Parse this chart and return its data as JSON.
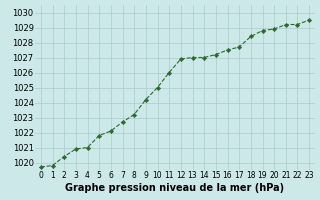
{
  "x": [
    0,
    1,
    2,
    3,
    4,
    5,
    6,
    7,
    8,
    9,
    10,
    11,
    12,
    13,
    14,
    15,
    16,
    17,
    18,
    19,
    20,
    21,
    22,
    23
  ],
  "y": [
    1019.7,
    1019.8,
    1020.4,
    1020.9,
    1021.0,
    1021.8,
    1022.1,
    1022.7,
    1023.2,
    1024.2,
    1025.0,
    1026.0,
    1026.9,
    1027.0,
    1027.0,
    1027.2,
    1027.5,
    1027.7,
    1028.4,
    1028.8,
    1028.9,
    1029.2,
    1029.2,
    1029.5
  ],
  "ylim": [
    1019.5,
    1030.5
  ],
  "yticks": [
    1020,
    1021,
    1022,
    1023,
    1024,
    1025,
    1026,
    1027,
    1028,
    1029,
    1030
  ],
  "xticks": [
    0,
    1,
    2,
    3,
    4,
    5,
    6,
    7,
    8,
    9,
    10,
    11,
    12,
    13,
    14,
    15,
    16,
    17,
    18,
    19,
    20,
    21,
    22,
    23
  ],
  "line_color": "#2d6a2d",
  "marker_color": "#2d6a2d",
  "bg_color": "#cce8e8",
  "grid_color": "#aacccc",
  "xlabel": "Graphe pression niveau de la mer (hPa)",
  "xlabel_fontsize": 7,
  "ylabel_fontsize": 6,
  "tick_fontsize": 5.5
}
